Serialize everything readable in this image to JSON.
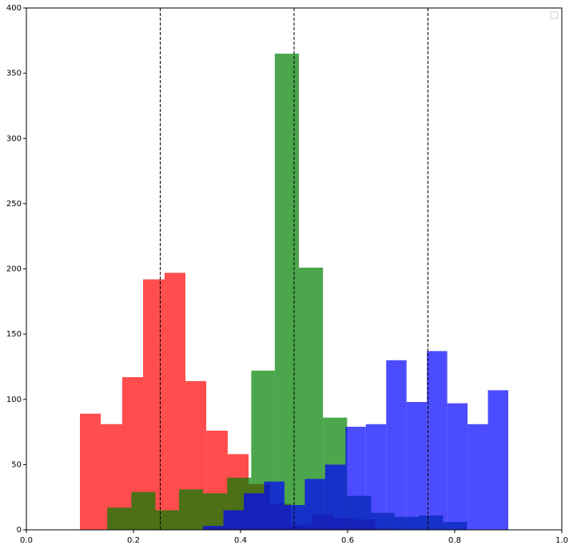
{
  "chart_data": {
    "type": "histogram",
    "xlim": [
      0,
      1
    ],
    "ylim": [
      0,
      400
    ],
    "xticks": [
      {
        "value": 0,
        "label": "0.0"
      },
      {
        "value": 0.2,
        "label": "0.2"
      },
      {
        "value": 0.4,
        "label": "0.4"
      },
      {
        "value": 0.6,
        "label": "0.6"
      },
      {
        "value": 0.8,
        "label": "0.8"
      },
      {
        "value": 1,
        "label": "1.0"
      }
    ],
    "yticks": [
      0,
      50,
      100,
      150,
      200,
      250,
      300,
      350,
      400
    ],
    "alpha": 0.7,
    "vlines": [
      0.25,
      0.5,
      0.75
    ],
    "vline_color": "#000000",
    "series": [
      {
        "color": "#ff0000",
        "bins": [
          0.1,
          0.139,
          0.179,
          0.218,
          0.258,
          0.297,
          0.336,
          0.376,
          0.415,
          0.455,
          0.494,
          0.533,
          0.573,
          0.612,
          0.652,
          0.691
        ],
        "values": [
          89,
          81,
          117,
          192,
          197,
          114,
          76,
          58,
          35,
          20,
          4,
          12,
          9,
          8,
          1
        ]
      },
      {
        "color": "#008000",
        "bins": [
          0.151,
          0.196,
          0.241,
          0.285,
          0.33,
          0.375,
          0.42,
          0.464,
          0.509,
          0.554,
          0.599,
          0.644,
          0.688,
          0.733,
          0.778,
          0.823
        ],
        "values": [
          17,
          29,
          15,
          31,
          28,
          40,
          122,
          365,
          201,
          86,
          26,
          13,
          10,
          11,
          6
        ]
      },
      {
        "color": "#0000ff",
        "bins": [
          0.33,
          0.368,
          0.406,
          0.444,
          0.482,
          0.52,
          0.558,
          0.596,
          0.634,
          0.672,
          0.71,
          0.748,
          0.786,
          0.824,
          0.862,
          0.9
        ],
        "values": [
          3,
          15,
          28,
          37,
          19,
          39,
          50,
          79,
          81,
          130,
          98,
          137,
          97,
          81,
          107
        ]
      }
    ]
  }
}
